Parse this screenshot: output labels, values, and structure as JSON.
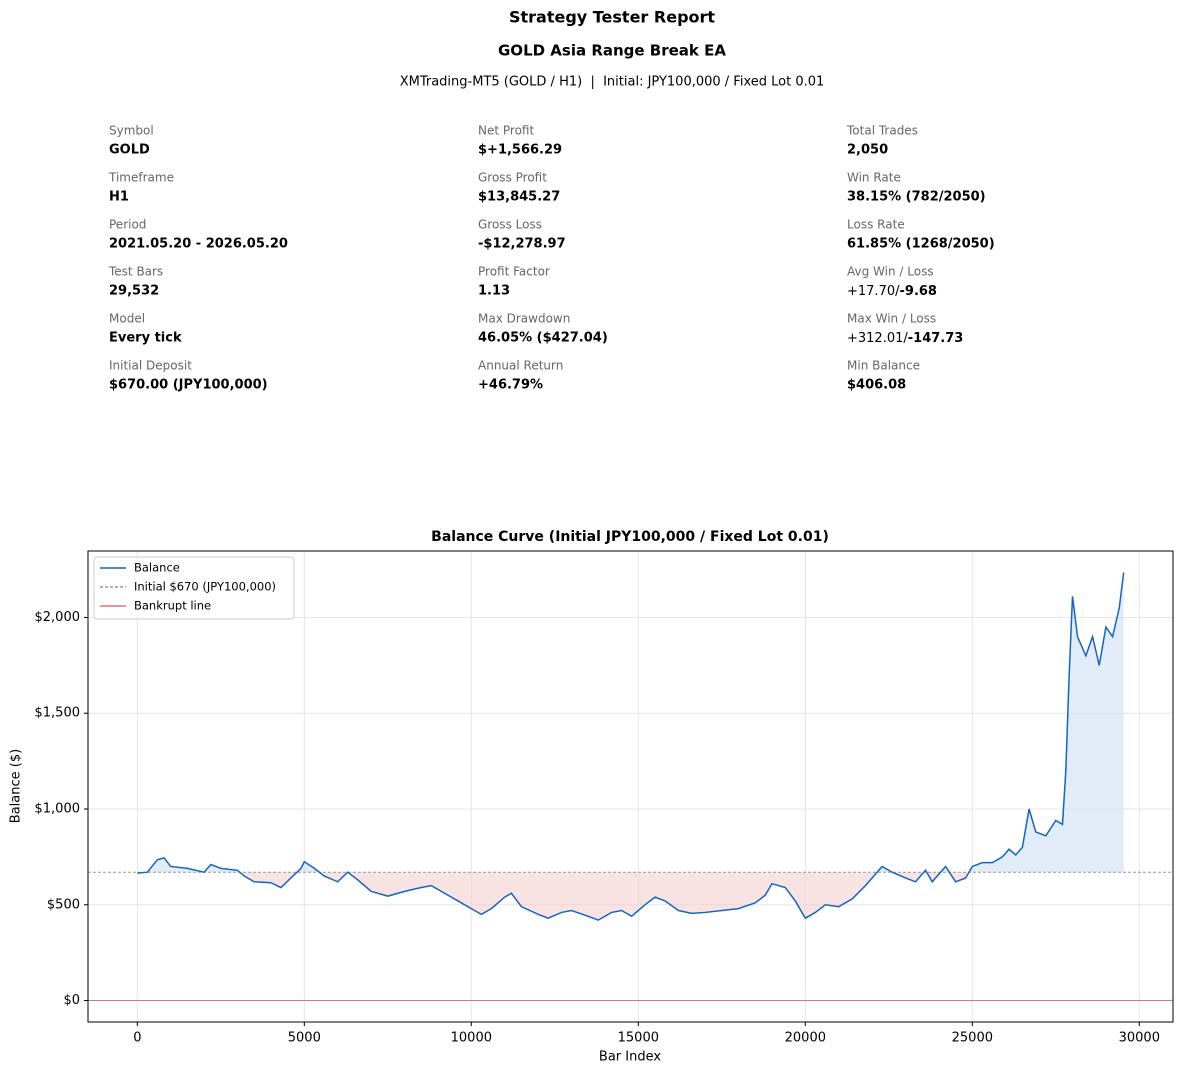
{
  "header": {
    "title": "Strategy Tester Report",
    "subtitle": "GOLD Asia Range Break EA",
    "info": "XMTrading-MT5 (GOLD / H1)  |  Initial: JPY100,000 / Fixed Lot 0.01"
  },
  "stats": [
    [
      {
        "label": "Symbol",
        "value": "GOLD"
      },
      {
        "label": "Timeframe",
        "value": "H1"
      },
      {
        "label": "Period",
        "value": "2021.05.20 - 2026.05.20"
      },
      {
        "label": "Test Bars",
        "value": "29,532"
      },
      {
        "label": "Model",
        "value": "Every tick"
      },
      {
        "label": "Initial Deposit",
        "value": "$670.00 (JPY100,000)"
      }
    ],
    [
      {
        "label": "Net Profit",
        "value": "$+1,566.29"
      },
      {
        "label": "Gross Profit",
        "value": "$13,845.27"
      },
      {
        "label": "Gross Loss",
        "value": "-$12,278.97"
      },
      {
        "label": "Profit Factor",
        "value": "1.13"
      },
      {
        "label": "Max Drawdown",
        "value": "46.05% ($427.04)"
      },
      {
        "label": "Annual Return",
        "value": "+46.79%"
      }
    ],
    [
      {
        "label": "Total Trades",
        "value": "2,050"
      },
      {
        "label": "Win Rate",
        "value": "38.15% (782/2050)"
      },
      {
        "label": "Loss Rate",
        "value": "61.85% (1268/2050)"
      },
      {
        "label": "Avg Win / Loss",
        "value": [
          "+17.70/",
          "-9.68"
        ]
      },
      {
        "label": "Max Win / Loss",
        "value": [
          "+312.01/",
          "-147.73"
        ]
      },
      {
        "label": "Min Balance",
        "value": "$406.08"
      }
    ]
  ],
  "chart_data": {
    "type": "line",
    "title": "Balance Curve (Initial JPY100,000 / Fixed Lot 0.01)",
    "xlabel": "Bar Index",
    "ylabel": "Balance ($)",
    "xlim": [
      -1477,
      31009
    ],
    "ylim": [
      -112,
      2347
    ],
    "xticks": [
      0,
      5000,
      10000,
      15000,
      20000,
      25000,
      30000
    ],
    "yticks": [
      {
        "value": 0,
        "label": "$0"
      },
      {
        "value": 500,
        "label": "$500"
      },
      {
        "value": 1000,
        "label": "$1,000"
      },
      {
        "value": 1500,
        "label": "$1,500"
      },
      {
        "value": 2000,
        "label": "$2,000"
      }
    ],
    "grid": true,
    "legend": "upper left",
    "fill_above_color": "#cfe0f5",
    "fill_below_color": "#f5cfcf",
    "series": [
      {
        "name": "Balance",
        "color": "#1565c0",
        "x": [
          0,
          300,
          600,
          800,
          1000,
          1500,
          2000,
          2200,
          2500,
          3000,
          3200,
          3500,
          4000,
          4300,
          4600,
          4900,
          5000,
          5300,
          5600,
          6000,
          6300,
          6600,
          7000,
          7500,
          8000,
          8500,
          8800,
          9200,
          9600,
          10000,
          10300,
          10600,
          11000,
          11200,
          11500,
          12000,
          12300,
          12700,
          13000,
          13500,
          13800,
          14200,
          14500,
          14800,
          15200,
          15500,
          15800,
          16200,
          16600,
          17000,
          17500,
          18000,
          18500,
          18800,
          19000,
          19400,
          19700,
          20000,
          20300,
          20600,
          21000,
          21400,
          21800,
          22100,
          22300,
          22600,
          23000,
          23300,
          23600,
          23800,
          24200,
          24500,
          24800,
          25000,
          25300,
          25600,
          25900,
          26100,
          26300,
          26500,
          26700,
          26900,
          27200,
          27500,
          27700,
          27800,
          27900,
          28000,
          28150,
          28400,
          28600,
          28800,
          29000,
          29200,
          29400,
          29532
        ],
        "values": [
          665,
          670,
          735,
          745,
          700,
          690,
          670,
          710,
          690,
          680,
          650,
          620,
          615,
          590,
          640,
          690,
          725,
          690,
          650,
          620,
          670,
          630,
          570,
          545,
          570,
          590,
          600,
          560,
          520,
          480,
          450,
          480,
          540,
          560,
          490,
          450,
          430,
          460,
          470,
          440,
          420,
          460,
          470,
          440,
          500,
          540,
          520,
          470,
          455,
          460,
          470,
          480,
          510,
          550,
          610,
          590,
          520,
          430,
          460,
          500,
          490,
          530,
          600,
          660,
          700,
          670,
          640,
          620,
          680,
          620,
          700,
          620,
          640,
          700,
          720,
          720,
          750,
          790,
          760,
          800,
          1000,
          880,
          860,
          940,
          920,
          1200,
          1700,
          2110,
          1900,
          1800,
          1900,
          1750,
          1950,
          1900,
          2050,
          2235
        ]
      }
    ],
    "hlines": [
      {
        "name": "Initial $670 (JPY100,000)",
        "value": 670,
        "color": "#999999",
        "style": "dashed"
      },
      {
        "name": "Bankrupt line",
        "value": 0,
        "color": "#e57373",
        "style": "solid"
      }
    ]
  }
}
